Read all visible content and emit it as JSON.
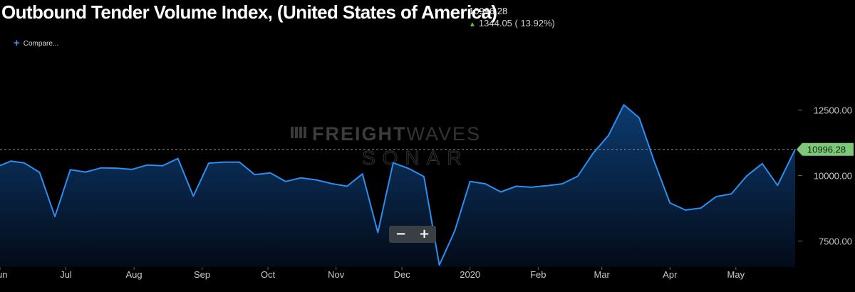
{
  "header": {
    "title": "Outbound Tender Volume Index, (United States of America)",
    "current_value": "10996.28",
    "change_text": "1344.05 ( 13.92%)",
    "change_direction": "up",
    "compare_label": "Compare..."
  },
  "watermark": {
    "line1_bold": "FREIGHT",
    "line1_light": "WAVES",
    "line2": "SONAR"
  },
  "zoom": {
    "minus_label": "−",
    "plus_label": "+"
  },
  "colors": {
    "line": "#2a8ff0",
    "area_top": "#0d3d73",
    "current_tag": "#7ec87a",
    "axis_text": "#c8c8c8",
    "background": "#000000"
  },
  "chart_data": {
    "type": "area",
    "title": "Outbound Tender Volume Index, (United States of America)",
    "x_tick_labels": [
      "Jun",
      "Jul",
      "Aug",
      "Sep",
      "Oct",
      "Nov",
      "Dec",
      "2020",
      "Feb",
      "Mar",
      "Apr",
      "May"
    ],
    "y_tick_labels": [
      "12500.00",
      "10000.00",
      "7500.00"
    ],
    "y_ticks": [
      12500,
      10000,
      7500
    ],
    "ylim": [
      6500,
      14800
    ],
    "current_value": 10996.28,
    "current_value_label": "10996.28",
    "grid": false,
    "series": [
      {
        "x": [
          "2019-06-01",
          "2019-06-06",
          "2019-06-12",
          "2019-06-19",
          "2019-06-26",
          "2019-07-03",
          "2019-07-10",
          "2019-07-17",
          "2019-07-24",
          "2019-07-31",
          "2019-08-07",
          "2019-08-14",
          "2019-08-21",
          "2019-08-28",
          "2019-09-04",
          "2019-09-11",
          "2019-09-18",
          "2019-09-25",
          "2019-10-02",
          "2019-10-09",
          "2019-10-16",
          "2019-10-23",
          "2019-10-30",
          "2019-11-06",
          "2019-11-13",
          "2019-11-20",
          "2019-11-27",
          "2019-12-04",
          "2019-12-11",
          "2019-12-18",
          "2019-12-25",
          "2020-01-01",
          "2020-01-08",
          "2020-01-15",
          "2020-01-22",
          "2020-01-29",
          "2020-02-05",
          "2020-02-12",
          "2020-02-19",
          "2020-02-26",
          "2020-03-04",
          "2020-03-11",
          "2020-03-18",
          "2020-03-25",
          "2020-04-01",
          "2020-04-08",
          "2020-04-15",
          "2020-04-22",
          "2020-04-29",
          "2020-05-06",
          "2020-05-13",
          "2020-05-20",
          "2020-05-28"
        ],
        "values": [
          10380,
          10550,
          10480,
          10120,
          8430,
          10220,
          10130,
          10290,
          10280,
          10230,
          10400,
          10370,
          10650,
          9210,
          10470,
          10510,
          10510,
          10030,
          10100,
          9770,
          9910,
          9830,
          9690,
          9590,
          10060,
          7820,
          10480,
          10270,
          9960,
          6580,
          7880,
          9770,
          9680,
          9370,
          9590,
          9550,
          9610,
          9680,
          9970,
          10850,
          11530,
          12700,
          12200,
          10500,
          8950,
          8680,
          8750,
          9190,
          9300,
          9990,
          10450,
          9620,
          10996
        ]
      }
    ]
  }
}
